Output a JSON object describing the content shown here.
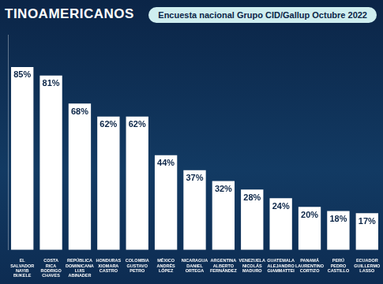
{
  "chart_data": {
    "type": "bar",
    "title": "TINOAMERICANOS",
    "subtitle": "Encuesta nacional Grupo CID/Gallup Octubre 2022",
    "categories": [
      "EL SALVADOR",
      "COSTA RICA",
      "REPÚBLICA DOMINICANA",
      "HONDURAS",
      "COLOMBIA",
      "MÉXICO",
      "NICARAGUA",
      "ARGENTINA",
      "VENEZUELA",
      "GUATEMALA",
      "PANAMÁ",
      "PERÚ",
      "ECUADOR"
    ],
    "names": [
      "NAYIB BUKELE",
      "RODRIGO CHAVES",
      "LUIS ABINADER",
      "XIOMARA CASTRO",
      "GUSTAVO PETRO",
      "ANDRÉS LÓPEZ",
      "DANIEL ORTEGA",
      "ALBERTO FERNÁNDEZ",
      "NICOLÁS MADURO",
      "ALEJANDRO GIAMMATTEI",
      "LAURENTINO CORTIZO",
      "PEDRO CASTILLO",
      "GUILLERMO LASSO"
    ],
    "values": [
      85,
      81,
      68,
      62,
      62,
      44,
      37,
      32,
      28,
      24,
      20,
      18,
      17
    ],
    "value_labels": [
      "85%",
      "81%",
      "68%",
      "62%",
      "62%",
      "44%",
      "37%",
      "32%",
      "28%",
      "24%",
      "20%",
      "18%",
      "17%"
    ],
    "color": "#ffffff",
    "ylim": [
      0,
      100
    ],
    "grid": false,
    "data_labels": true,
    "tick_labels": "x"
  }
}
